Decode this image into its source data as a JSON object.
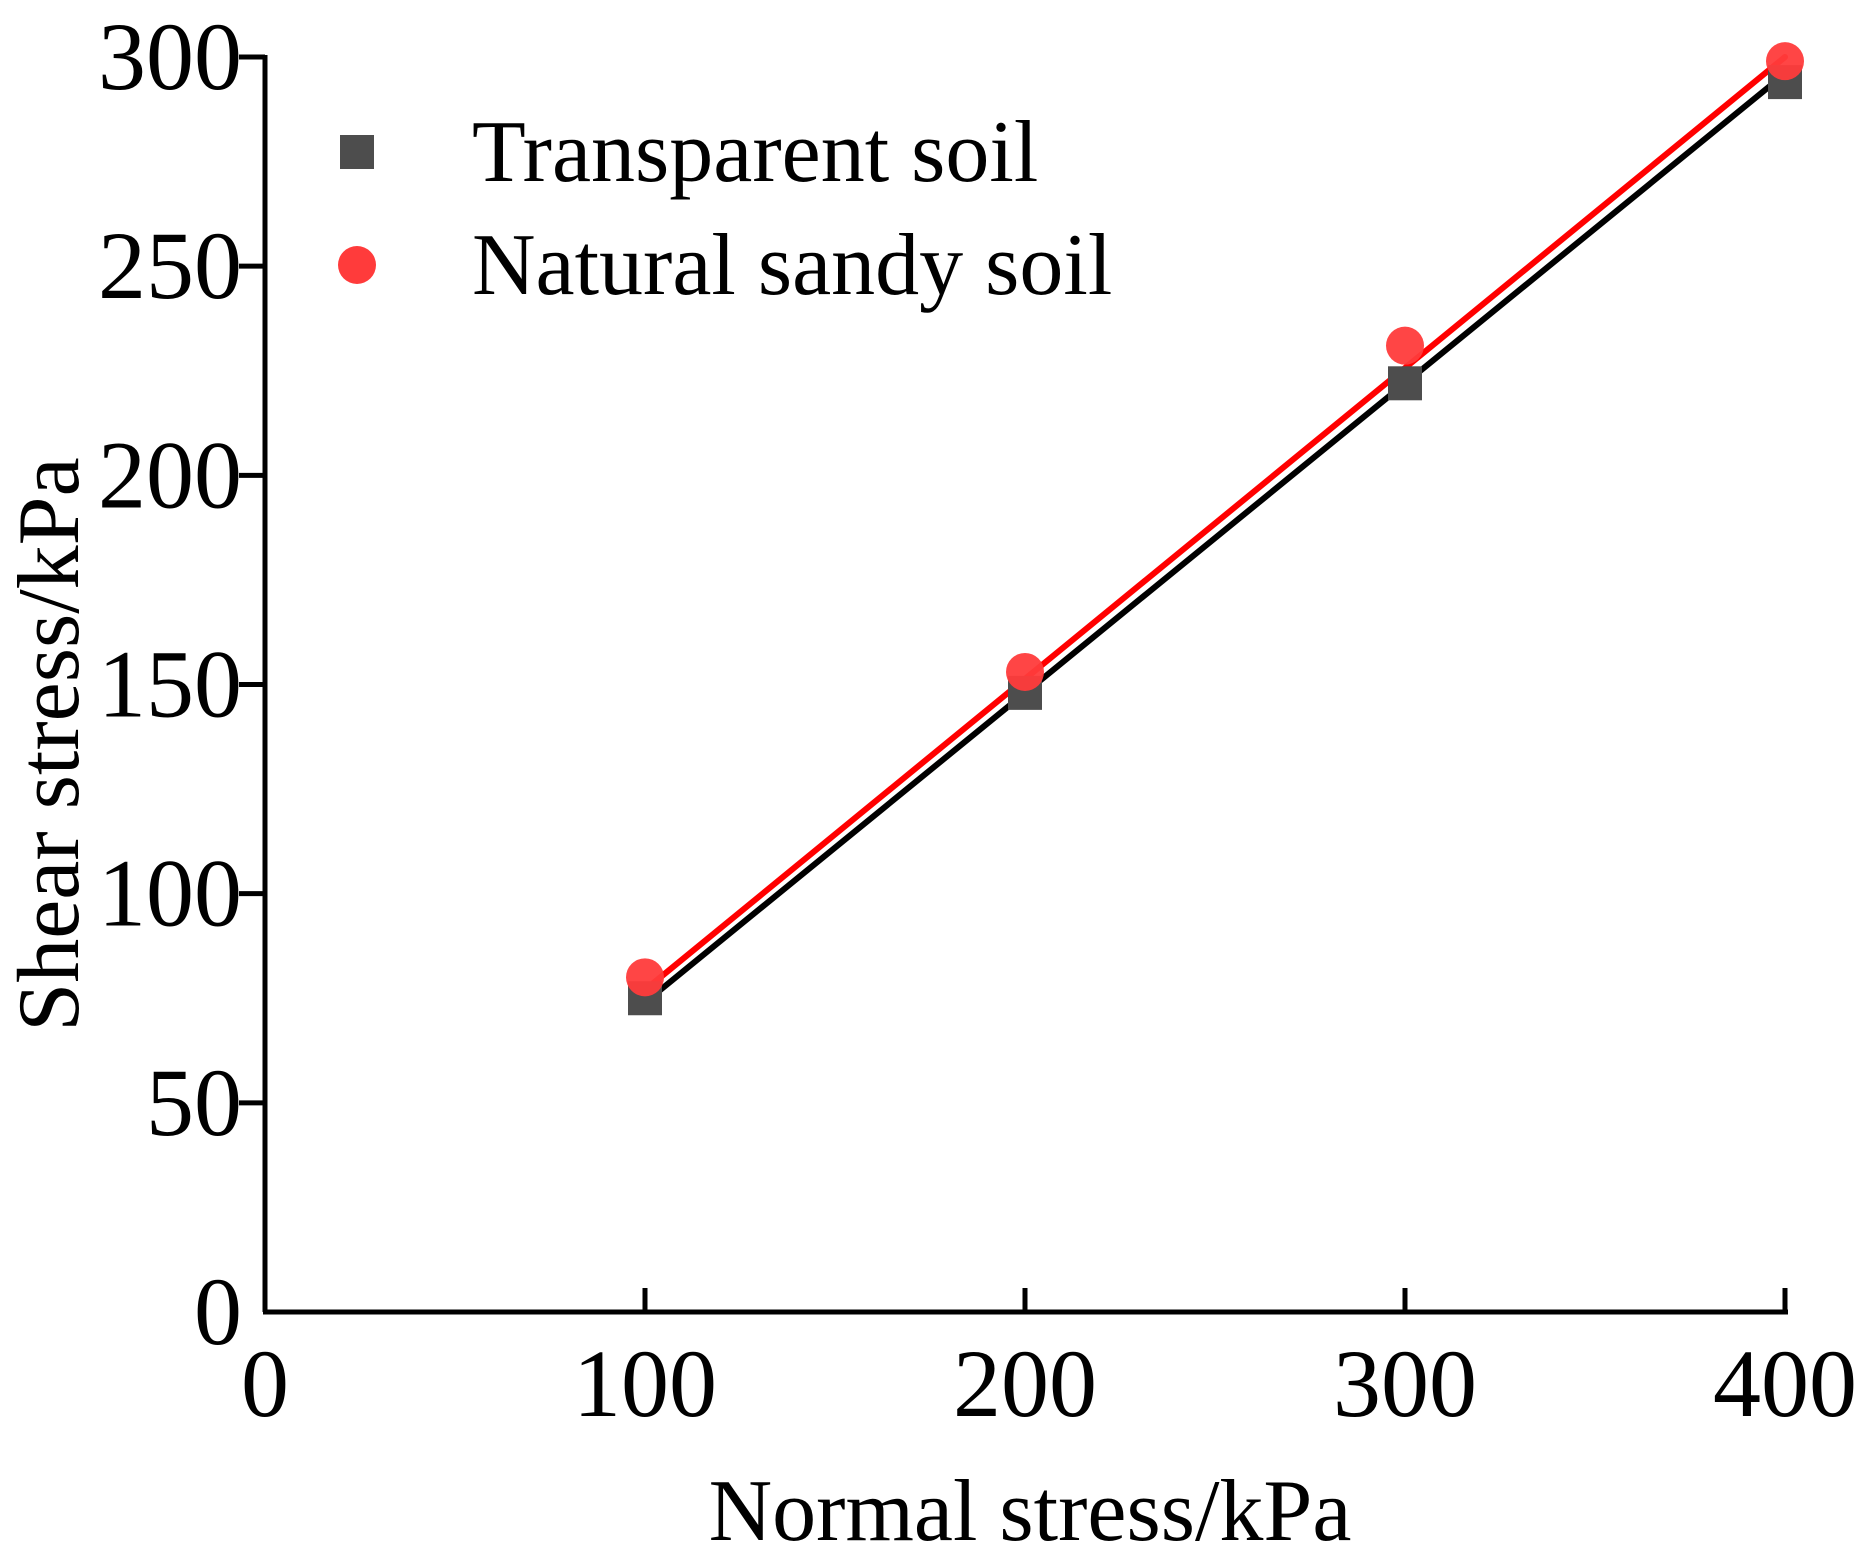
{
  "chart_data": {
    "type": "scatter",
    "title": "",
    "xlabel": "Normal stress/kPa",
    "ylabel": "Shear stress/kPa",
    "xlim": [
      0,
      400
    ],
    "ylim": [
      0,
      300
    ],
    "x_ticks": [
      "0",
      "100",
      "200",
      "300",
      "400"
    ],
    "y_ticks": [
      "0",
      "50",
      "100",
      "150",
      "200",
      "250",
      "300"
    ],
    "grid": false,
    "legend_position": "top-left",
    "series": [
      {
        "name": "Transparent soil",
        "marker": "square",
        "color": "#4d4d4d",
        "fit_color": "#000000",
        "x": [
          100,
          200,
          300,
          400
        ],
        "y": [
          75,
          148,
          222,
          294
        ],
        "fit": [
          [
            100,
            74
          ],
          [
            400,
            296
          ]
        ]
      },
      {
        "name": "Natural sandy soil",
        "marker": "circle",
        "color": "#ff3b3b",
        "fit_color": "#ff0000",
        "x": [
          100,
          200,
          300,
          400
        ],
        "y": [
          80,
          153,
          231,
          299
        ],
        "fit": [
          [
            100,
            77
          ],
          [
            400,
            300
          ]
        ]
      }
    ]
  }
}
